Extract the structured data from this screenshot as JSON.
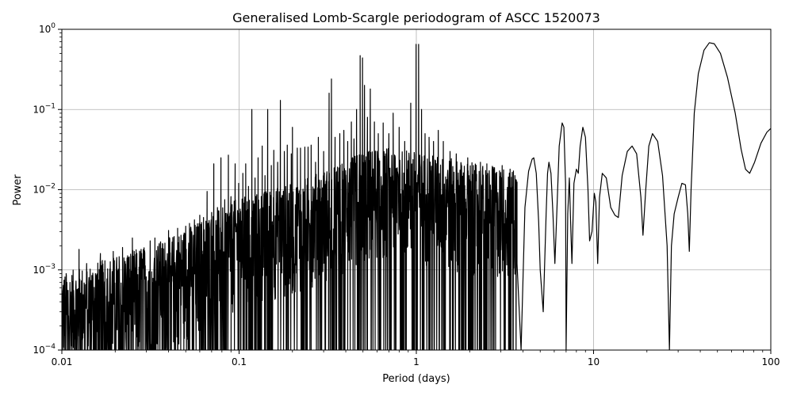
{
  "chart_data": {
    "type": "line",
    "title": "Generalised Lomb-Scargle periodogram of ASCC 1520073",
    "xlabel": "Period (days)",
    "ylabel": "Power",
    "xscale": "log",
    "yscale": "log",
    "xlim": [
      0.01,
      100
    ],
    "ylim": [
      0.0001,
      1
    ],
    "grid": true,
    "line_color": "#000000",
    "x_ticks": [
      {
        "value": 0.01,
        "label": "0.01"
      },
      {
        "value": 0.1,
        "label": "0.1"
      },
      {
        "value": 1,
        "label": "1"
      },
      {
        "value": 10,
        "label": "10"
      },
      {
        "value": 100,
        "label": "100"
      }
    ],
    "y_ticks": [
      {
        "value": 0.0001,
        "base": "10",
        "exp": "−4"
      },
      {
        "value": 0.001,
        "base": "10",
        "exp": "−3"
      },
      {
        "value": 0.01,
        "base": "10",
        "exp": "−2"
      },
      {
        "value": 0.1,
        "base": "10",
        "exp": "−1"
      },
      {
        "value": 1,
        "base": "10",
        "exp": "0"
      }
    ],
    "x_minor_ticks": [
      0.02,
      0.03,
      0.04,
      0.05,
      0.06,
      0.07,
      0.08,
      0.09,
      0.2,
      0.3,
      0.4,
      0.5,
      0.6,
      0.7,
      0.8,
      0.9,
      2,
      3,
      4,
      5,
      6,
      7,
      8,
      9,
      20,
      30,
      40,
      50,
      60,
      70,
      80,
      90
    ],
    "envelope": [
      [
        0.01,
        0.0009
      ],
      [
        0.02,
        0.0015
      ],
      [
        0.04,
        0.0025
      ],
      [
        0.07,
        0.005
      ],
      [
        0.1,
        0.008
      ],
      [
        0.2,
        0.012
      ],
      [
        0.35,
        0.02
      ],
      [
        0.5,
        0.03
      ],
      [
        0.7,
        0.035
      ],
      [
        1.0,
        0.03
      ],
      [
        1.5,
        0.025
      ],
      [
        2.5,
        0.02
      ],
      [
        4.0,
        0.018
      ]
    ],
    "peaks": [
      [
        0.0106,
        0.00085
      ],
      [
        0.0125,
        0.0018
      ],
      [
        0.0138,
        0.0012
      ],
      [
        0.0165,
        0.0016
      ],
      [
        0.0175,
        0.0013
      ],
      [
        0.0195,
        0.0017
      ],
      [
        0.022,
        0.0019
      ],
      [
        0.0235,
        0.0015
      ],
      [
        0.025,
        0.0025
      ],
      [
        0.028,
        0.0018
      ],
      [
        0.0315,
        0.0023
      ],
      [
        0.0335,
        0.0025
      ],
      [
        0.036,
        0.0022
      ],
      [
        0.04,
        0.0031
      ],
      [
        0.043,
        0.0026
      ],
      [
        0.045,
        0.0033
      ],
      [
        0.05,
        0.0035
      ],
      [
        0.0525,
        0.0038
      ],
      [
        0.056,
        0.0042
      ],
      [
        0.06,
        0.0048
      ],
      [
        0.063,
        0.0045
      ],
      [
        0.066,
        0.0095
      ],
      [
        0.07,
        0.0052
      ],
      [
        0.072,
        0.021
      ],
      [
        0.0755,
        0.006
      ],
      [
        0.079,
        0.025
      ],
      [
        0.083,
        0.0075
      ],
      [
        0.087,
        0.027
      ],
      [
        0.09,
        0.0082
      ],
      [
        0.095,
        0.021
      ],
      [
        0.0995,
        0.012
      ],
      [
        0.105,
        0.016
      ],
      [
        0.109,
        0.021
      ],
      [
        0.113,
        0.011
      ],
      [
        0.118,
        0.1
      ],
      [
        0.123,
        0.014
      ],
      [
        0.128,
        0.025
      ],
      [
        0.135,
        0.035
      ],
      [
        0.14,
        0.015
      ],
      [
        0.145,
        0.1
      ],
      [
        0.152,
        0.02
      ],
      [
        0.157,
        0.031
      ],
      [
        0.165,
        0.022
      ],
      [
        0.171,
        0.13
      ],
      [
        0.18,
        0.03
      ],
      [
        0.187,
        0.036
      ],
      [
        0.197,
        0.028
      ],
      [
        0.2,
        0.06
      ],
      [
        0.213,
        0.033
      ],
      [
        0.222,
        0.033
      ],
      [
        0.235,
        0.034
      ],
      [
        0.245,
        0.034
      ],
      [
        0.255,
        0.036
      ],
      [
        0.27,
        0.022
      ],
      [
        0.28,
        0.045
      ],
      [
        0.3,
        0.03
      ],
      [
        0.322,
        0.16
      ],
      [
        0.332,
        0.24
      ],
      [
        0.348,
        0.045
      ],
      [
        0.37,
        0.05
      ],
      [
        0.39,
        0.055
      ],
      [
        0.41,
        0.04
      ],
      [
        0.43,
        0.07
      ],
      [
        0.445,
        0.043
      ],
      [
        0.46,
        0.1
      ],
      [
        0.482,
        0.47
      ],
      [
        0.497,
        0.44
      ],
      [
        0.51,
        0.2
      ],
      [
        0.53,
        0.08
      ],
      [
        0.55,
        0.18
      ],
      [
        0.58,
        0.07
      ],
      [
        0.61,
        0.05
      ],
      [
        0.65,
        0.068
      ],
      [
        0.7,
        0.05
      ],
      [
        0.74,
        0.09
      ],
      [
        0.8,
        0.06
      ],
      [
        0.86,
        0.04
      ],
      [
        0.93,
        0.12
      ],
      [
        0.997,
        0.65
      ],
      [
        1.03,
        0.65
      ],
      [
        1.07,
        0.1
      ],
      [
        1.12,
        0.05
      ],
      [
        1.18,
        0.045
      ],
      [
        1.25,
        0.04
      ],
      [
        1.33,
        0.055
      ],
      [
        1.42,
        0.04
      ],
      [
        1.55,
        0.03
      ],
      [
        1.68,
        0.028
      ],
      [
        1.8,
        0.02
      ],
      [
        1.95,
        0.025
      ],
      [
        2.1,
        0.02
      ],
      [
        2.3,
        0.022
      ],
      [
        2.5,
        0.021
      ],
      [
        2.75,
        0.018
      ],
      [
        3.05,
        0.02
      ],
      [
        3.35,
        0.012
      ],
      [
        3.6,
        0.015
      ]
    ],
    "dips": [
      [
        0.011,
        0.0001
      ],
      [
        0.016,
        0.0001
      ],
      [
        0.024,
        0.0001
      ],
      [
        0.034,
        0.0001
      ],
      [
        0.045,
        0.0001
      ],
      [
        0.062,
        0.0001
      ],
      [
        0.085,
        0.0001
      ],
      [
        0.11,
        0.0001
      ],
      [
        0.15,
        0.0001
      ],
      [
        0.19,
        0.0001
      ],
      [
        0.24,
        0.0001
      ],
      [
        0.29,
        0.0001
      ],
      [
        0.32,
        0.0001
      ],
      [
        0.37,
        0.0001
      ],
      [
        0.41,
        0.0001
      ],
      [
        0.45,
        0.0001
      ],
      [
        0.53,
        0.0001
      ],
      [
        0.63,
        0.0001
      ],
      [
        0.72,
        0.0001
      ],
      [
        0.85,
        0.0001
      ],
      [
        1.1,
        0.0001
      ],
      [
        1.35,
        0.0001
      ],
      [
        1.6,
        0.0001
      ],
      [
        1.9,
        0.0001
      ],
      [
        2.3,
        0.0001
      ],
      [
        2.8,
        0.0001
      ]
    ],
    "smooth_curve": [
      [
        3.7,
        0.0012
      ],
      [
        3.9,
        0.0001
      ],
      [
        4.1,
        0.006
      ],
      [
        4.3,
        0.017
      ],
      [
        4.5,
        0.024
      ],
      [
        4.6,
        0.025
      ],
      [
        4.75,
        0.016
      ],
      [
        4.9,
        0.004
      ],
      [
        5.0,
        0.001
      ],
      [
        5.2,
        0.0003
      ],
      [
        5.4,
        0.005
      ],
      [
        5.5,
        0.016
      ],
      [
        5.6,
        0.022
      ],
      [
        5.75,
        0.016
      ],
      [
        5.9,
        0.005
      ],
      [
        6.05,
        0.0012
      ],
      [
        6.2,
        0.005
      ],
      [
        6.4,
        0.035
      ],
      [
        6.65,
        0.068
      ],
      [
        6.8,
        0.06
      ],
      [
        6.95,
        0.012
      ],
      [
        7.0,
        0.0001
      ],
      [
        7.15,
        0.005
      ],
      [
        7.3,
        0.014
      ],
      [
        7.45,
        0.003
      ],
      [
        7.55,
        0.0012
      ],
      [
        7.75,
        0.012
      ],
      [
        8.0,
        0.018
      ],
      [
        8.2,
        0.016
      ],
      [
        8.4,
        0.035
      ],
      [
        8.7,
        0.06
      ],
      [
        9.0,
        0.045
      ],
      [
        9.3,
        0.01
      ],
      [
        9.5,
        0.0023
      ],
      [
        9.8,
        0.003
      ],
      [
        10.1,
        0.009
      ],
      [
        10.3,
        0.007
      ],
      [
        10.55,
        0.0012
      ],
      [
        10.8,
        0.008
      ],
      [
        11.2,
        0.016
      ],
      [
        11.8,
        0.014
      ],
      [
        12.5,
        0.006
      ],
      [
        13.2,
        0.0048
      ],
      [
        13.8,
        0.0045
      ],
      [
        14.5,
        0.015
      ],
      [
        15.5,
        0.03
      ],
      [
        16.5,
        0.035
      ],
      [
        17.5,
        0.028
      ],
      [
        18.5,
        0.008
      ],
      [
        19.0,
        0.0027
      ],
      [
        19.7,
        0.01
      ],
      [
        20.5,
        0.035
      ],
      [
        21.5,
        0.05
      ],
      [
        23.0,
        0.04
      ],
      [
        24.5,
        0.015
      ],
      [
        26.0,
        0.002
      ],
      [
        26.8,
        0.0001
      ],
      [
        27.5,
        0.002
      ],
      [
        28.5,
        0.005
      ],
      [
        30.0,
        0.008
      ],
      [
        31.5,
        0.012
      ],
      [
        33.0,
        0.0115
      ],
      [
        34.0,
        0.005
      ],
      [
        34.7,
        0.0017
      ],
      [
        35.5,
        0.01
      ],
      [
        37.0,
        0.09
      ],
      [
        39.0,
        0.28
      ],
      [
        42.0,
        0.55
      ],
      [
        45.0,
        0.68
      ],
      [
        48.0,
        0.66
      ],
      [
        52.0,
        0.5
      ],
      [
        57.0,
        0.25
      ],
      [
        63.0,
        0.09
      ],
      [
        68.0,
        0.032
      ],
      [
        72.0,
        0.018
      ],
      [
        76.0,
        0.016
      ],
      [
        81.0,
        0.022
      ],
      [
        88.0,
        0.038
      ],
      [
        95.0,
        0.052
      ],
      [
        100.0,
        0.058
      ]
    ]
  }
}
